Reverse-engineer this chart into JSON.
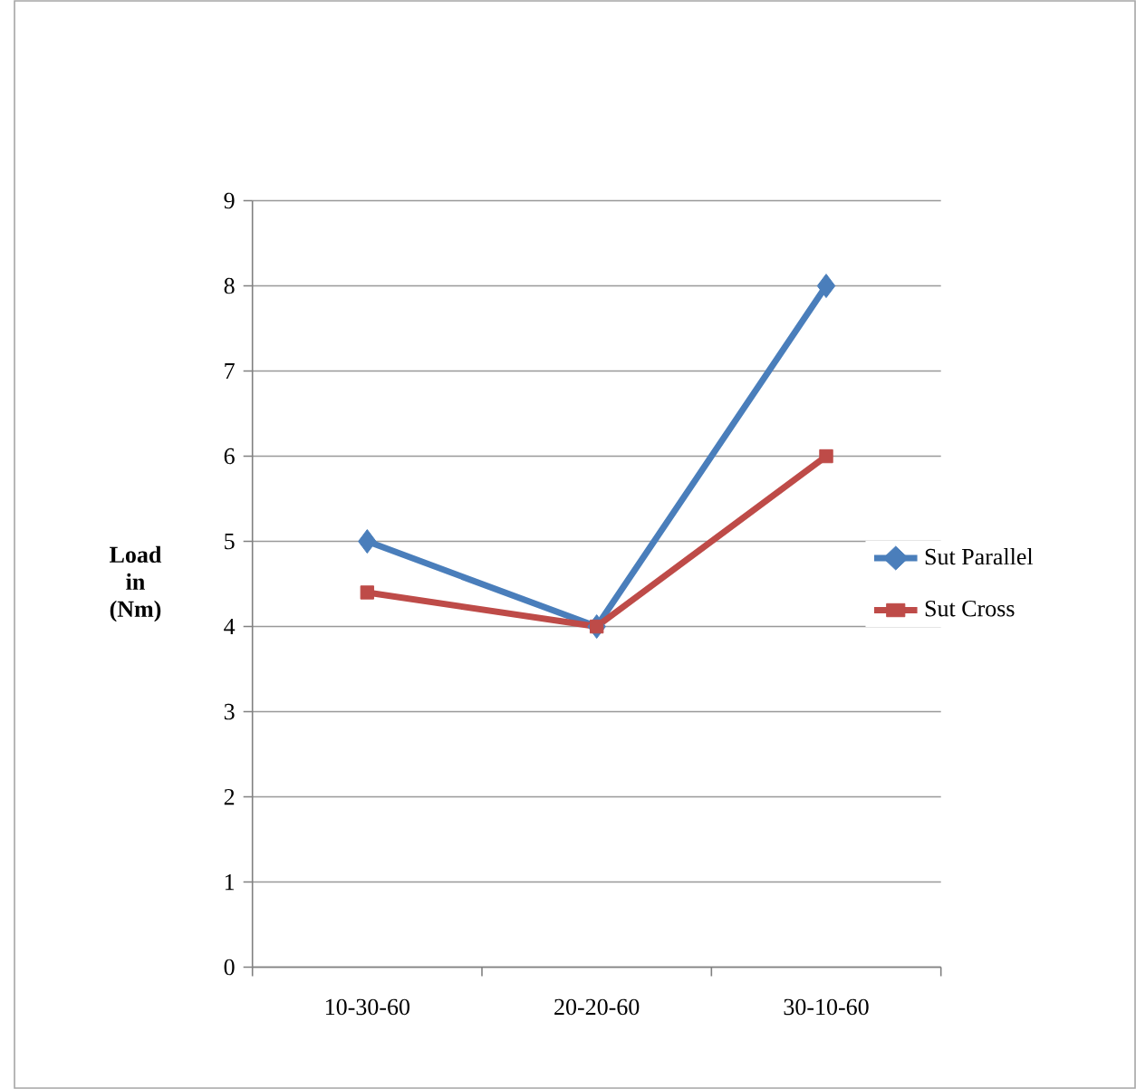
{
  "chart_data": {
    "type": "line",
    "ylabel": "Load in (Nm)",
    "categories": [
      "10-30-60",
      "20-20-60",
      "30-10-60"
    ],
    "series": [
      {
        "name": "Sut Parallel",
        "color": "#4a7ebb",
        "marker": "diamond",
        "values": [
          5,
          4,
          8
        ]
      },
      {
        "name": "Sut Cross",
        "color": "#be4b48",
        "marker": "square",
        "values": [
          4.4,
          4,
          6
        ]
      }
    ],
    "ylim": [
      0,
      9
    ],
    "yticks": [
      0,
      1,
      2,
      3,
      4,
      5,
      6,
      7,
      8,
      9
    ],
    "grid": "y",
    "legend": "right",
    "line_style": "solid"
  }
}
